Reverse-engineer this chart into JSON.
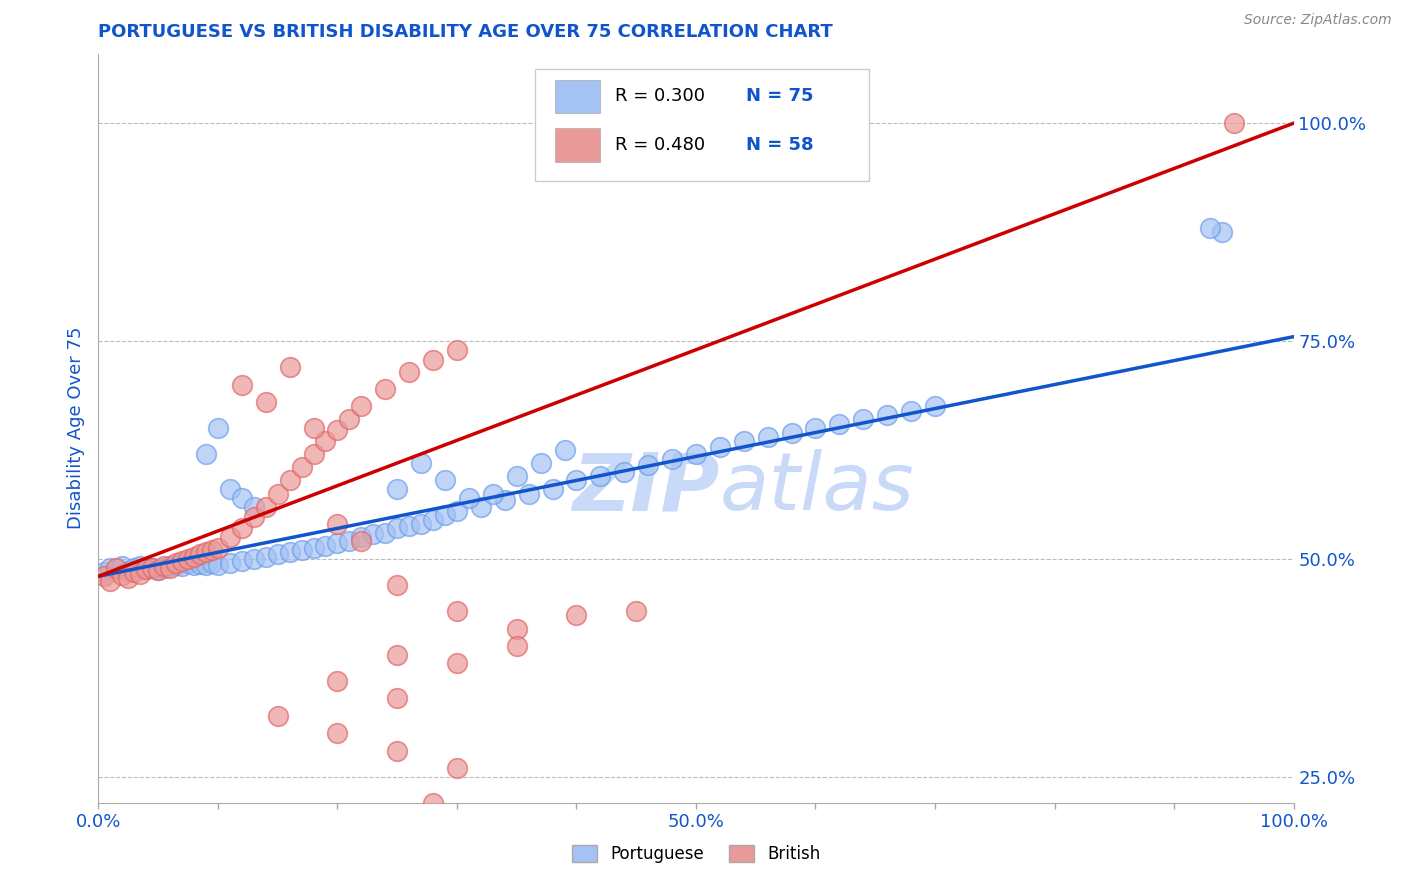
{
  "title": "PORTUGUESE VS BRITISH DISABILITY AGE OVER 75 CORRELATION CHART",
  "source": "Source: ZipAtlas.com",
  "ylabel": "Disability Age Over 75",
  "xlim": [
    0.0,
    1.0
  ],
  "ylim": [
    0.22,
    1.08
  ],
  "ytick_labels_right": [
    "25.0%",
    "50.0%",
    "75.0%",
    "100.0%"
  ],
  "ytick_vals_right": [
    0.25,
    0.5,
    0.75,
    1.0
  ],
  "legend_r_blue": "0.300",
  "legend_n_blue": "75",
  "legend_r_pink": "0.480",
  "legend_n_pink": "58",
  "legend_label_blue": "Portuguese",
  "legend_label_pink": "British",
  "blue_color": "#a4c2f4",
  "pink_color": "#ea9999",
  "blue_fill_color": "#6d9eeb",
  "pink_fill_color": "#e06666",
  "blue_line_color": "#1155cc",
  "pink_line_color": "#cc0000",
  "title_color": "#1155cc",
  "axis_label_color": "#1155cc",
  "tick_label_color": "#1155cc",
  "watermark_color": "#c9daf8",
  "blue_line_x0": 0.0,
  "blue_line_y0": 0.48,
  "blue_line_x1": 1.0,
  "blue_line_y1": 0.755,
  "pink_line_x0": 0.0,
  "pink_line_y0": 0.48,
  "pink_line_x1": 1.0,
  "pink_line_y1": 1.0,
  "blue_x": [
    0.005,
    0.01,
    0.015,
    0.02,
    0.025,
    0.03,
    0.035,
    0.04,
    0.045,
    0.05,
    0.055,
    0.06,
    0.065,
    0.07,
    0.075,
    0.08,
    0.085,
    0.09,
    0.095,
    0.1,
    0.11,
    0.12,
    0.13,
    0.14,
    0.15,
    0.16,
    0.17,
    0.18,
    0.19,
    0.2,
    0.21,
    0.22,
    0.23,
    0.24,
    0.25,
    0.26,
    0.27,
    0.28,
    0.29,
    0.3,
    0.32,
    0.34,
    0.36,
    0.38,
    0.4,
    0.42,
    0.44,
    0.46,
    0.48,
    0.5,
    0.52,
    0.54,
    0.56,
    0.58,
    0.6,
    0.62,
    0.64,
    0.66,
    0.68,
    0.7,
    0.09,
    0.1,
    0.11,
    0.12,
    0.13,
    0.25,
    0.27,
    0.29,
    0.31,
    0.33,
    0.35,
    0.37,
    0.39,
    0.94,
    0.93
  ],
  "blue_y": [
    0.485,
    0.49,
    0.488,
    0.492,
    0.486,
    0.49,
    0.492,
    0.488,
    0.49,
    0.487,
    0.49,
    0.492,
    0.493,
    0.492,
    0.495,
    0.493,
    0.494,
    0.493,
    0.495,
    0.493,
    0.495,
    0.498,
    0.5,
    0.502,
    0.505,
    0.508,
    0.51,
    0.512,
    0.515,
    0.518,
    0.52,
    0.525,
    0.528,
    0.53,
    0.535,
    0.538,
    0.54,
    0.545,
    0.55,
    0.555,
    0.56,
    0.568,
    0.575,
    0.58,
    0.59,
    0.595,
    0.6,
    0.608,
    0.615,
    0.62,
    0.628,
    0.635,
    0.64,
    0.645,
    0.65,
    0.655,
    0.66,
    0.665,
    0.67,
    0.675,
    0.62,
    0.65,
    0.58,
    0.57,
    0.56,
    0.58,
    0.61,
    0.59,
    0.57,
    0.575,
    0.595,
    0.61,
    0.625,
    0.875,
    0.88
  ],
  "pink_x": [
    0.005,
    0.01,
    0.015,
    0.02,
    0.025,
    0.03,
    0.035,
    0.04,
    0.045,
    0.05,
    0.055,
    0.06,
    0.065,
    0.07,
    0.075,
    0.08,
    0.085,
    0.09,
    0.095,
    0.1,
    0.11,
    0.12,
    0.13,
    0.14,
    0.15,
    0.16,
    0.17,
    0.18,
    0.19,
    0.2,
    0.21,
    0.22,
    0.24,
    0.26,
    0.28,
    0.3,
    0.12,
    0.14,
    0.16,
    0.18,
    0.2,
    0.22,
    0.25,
    0.3,
    0.35,
    0.4,
    0.45,
    0.25,
    0.3,
    0.35,
    0.2,
    0.25,
    0.15,
    0.2,
    0.25,
    0.3,
    0.28,
    0.95
  ],
  "pink_y": [
    0.48,
    0.475,
    0.49,
    0.482,
    0.478,
    0.485,
    0.483,
    0.488,
    0.49,
    0.487,
    0.492,
    0.49,
    0.495,
    0.498,
    0.5,
    0.502,
    0.505,
    0.508,
    0.51,
    0.512,
    0.525,
    0.535,
    0.548,
    0.56,
    0.575,
    0.59,
    0.605,
    0.62,
    0.635,
    0.648,
    0.66,
    0.675,
    0.695,
    0.715,
    0.728,
    0.74,
    0.7,
    0.68,
    0.72,
    0.65,
    0.54,
    0.52,
    0.47,
    0.44,
    0.42,
    0.435,
    0.44,
    0.39,
    0.38,
    0.4,
    0.36,
    0.34,
    0.32,
    0.3,
    0.28,
    0.26,
    0.22,
    1.0
  ],
  "background_color": "#ffffff",
  "grid_color": "#bbbbbb",
  "figsize": [
    14.06,
    8.92
  ],
  "dpi": 100
}
